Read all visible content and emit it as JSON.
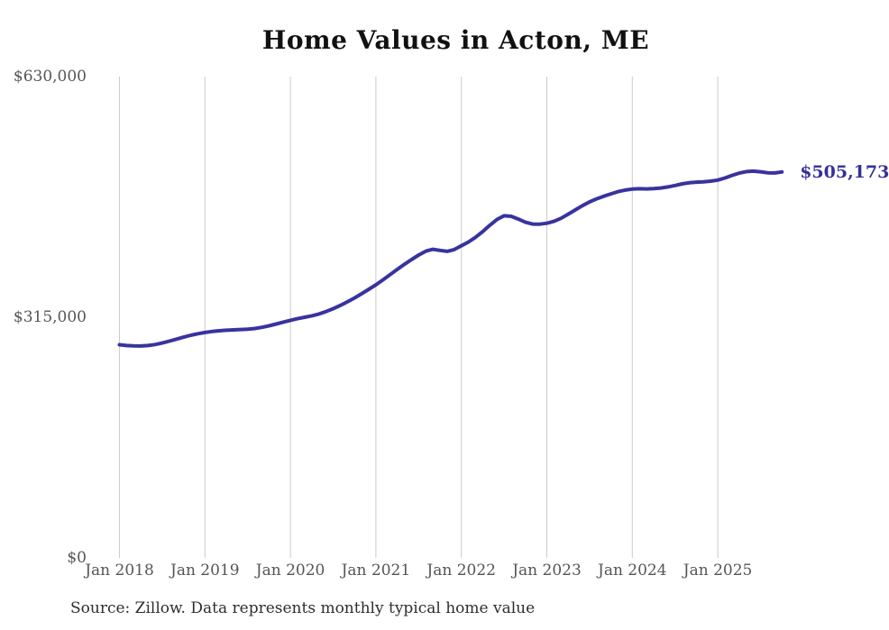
{
  "chart_data": {
    "type": "line",
    "title": "Home Values in Acton, ME",
    "source_note": "Source: Zillow. Data represents monthly typical home value",
    "end_label": "$505,173",
    "line_color": "#38339f",
    "grid_color": "#cccccc",
    "axis_text_color": "#555555",
    "title_color": "#111111",
    "end_label_color": "#33319b",
    "ylim": [
      0,
      630000
    ],
    "grid": "vertical-only",
    "legend_position": "none",
    "y_ticks": [
      {
        "label": "$0",
        "value": 0
      },
      {
        "label": "$315,000",
        "value": 315000
      },
      {
        "label": "$630,000",
        "value": 630000
      }
    ],
    "x_ticks": [
      {
        "label": "Jan 2018",
        "month_index": 0
      },
      {
        "label": "Jan 2019",
        "month_index": 12
      },
      {
        "label": "Jan 2020",
        "month_index": 24
      },
      {
        "label": "Jan 2021",
        "month_index": 36
      },
      {
        "label": "Jan 2022",
        "month_index": 48
      },
      {
        "label": "Jan 2023",
        "month_index": 60
      },
      {
        "label": "Jan 2024",
        "month_index": 72
      },
      {
        "label": "Jan 2025",
        "month_index": 84
      }
    ],
    "x": [
      "2018-01",
      "2018-02",
      "2018-03",
      "2018-04",
      "2018-05",
      "2018-06",
      "2018-07",
      "2018-08",
      "2018-09",
      "2018-10",
      "2018-11",
      "2018-12",
      "2019-01",
      "2019-02",
      "2019-03",
      "2019-04",
      "2019-05",
      "2019-06",
      "2019-07",
      "2019-08",
      "2019-09",
      "2019-10",
      "2019-11",
      "2019-12",
      "2020-01",
      "2020-02",
      "2020-03",
      "2020-04",
      "2020-05",
      "2020-06",
      "2020-07",
      "2020-08",
      "2020-09",
      "2020-10",
      "2020-11",
      "2020-12",
      "2021-01",
      "2021-02",
      "2021-03",
      "2021-04",
      "2021-05",
      "2021-06",
      "2021-07",
      "2021-08",
      "2021-09",
      "2021-10",
      "2021-11",
      "2021-12",
      "2022-01",
      "2022-02",
      "2022-03",
      "2022-04",
      "2022-05",
      "2022-06",
      "2022-07",
      "2022-08",
      "2022-09",
      "2022-10",
      "2022-11",
      "2022-12",
      "2023-01",
      "2023-02",
      "2023-03",
      "2023-04",
      "2023-05",
      "2023-06",
      "2023-07",
      "2023-08",
      "2023-09",
      "2023-10",
      "2023-11",
      "2023-12",
      "2024-01",
      "2024-02",
      "2024-03",
      "2024-04",
      "2024-05",
      "2024-06",
      "2024-07",
      "2024-08",
      "2024-09",
      "2024-10",
      "2024-11",
      "2024-12",
      "2025-01",
      "2025-02",
      "2025-03",
      "2025-04",
      "2025-05",
      "2025-06",
      "2025-07",
      "2025-08",
      "2025-09",
      "2025-10"
    ],
    "values": [
      279000,
      278000,
      277500,
      277400,
      277900,
      279200,
      281200,
      283700,
      286300,
      288900,
      291400,
      293400,
      295100,
      296400,
      297300,
      298000,
      298500,
      298900,
      299400,
      300300,
      301800,
      303800,
      306200,
      308600,
      311000,
      313100,
      315000,
      316900,
      319300,
      322400,
      326200,
      330500,
      335200,
      340300,
      345800,
      351600,
      357500,
      364000,
      370800,
      377600,
      384200,
      390500,
      396400,
      401500,
      403900,
      402500,
      401300,
      403600,
      408600,
      413500,
      419800,
      427200,
      435400,
      443000,
      447800,
      447100,
      443500,
      439400,
      437000,
      436900,
      438000,
      440500,
      444500,
      450000,
      455500,
      461000,
      466000,
      470000,
      473500,
      476500,
      479500,
      481500,
      482800,
      483200,
      483000,
      483400,
      484200,
      485600,
      487500,
      489600,
      491000,
      491800,
      492300,
      493200,
      494600,
      497300,
      500700,
      503600,
      505700,
      506300,
      505400,
      504100,
      503900,
      505173
    ]
  }
}
